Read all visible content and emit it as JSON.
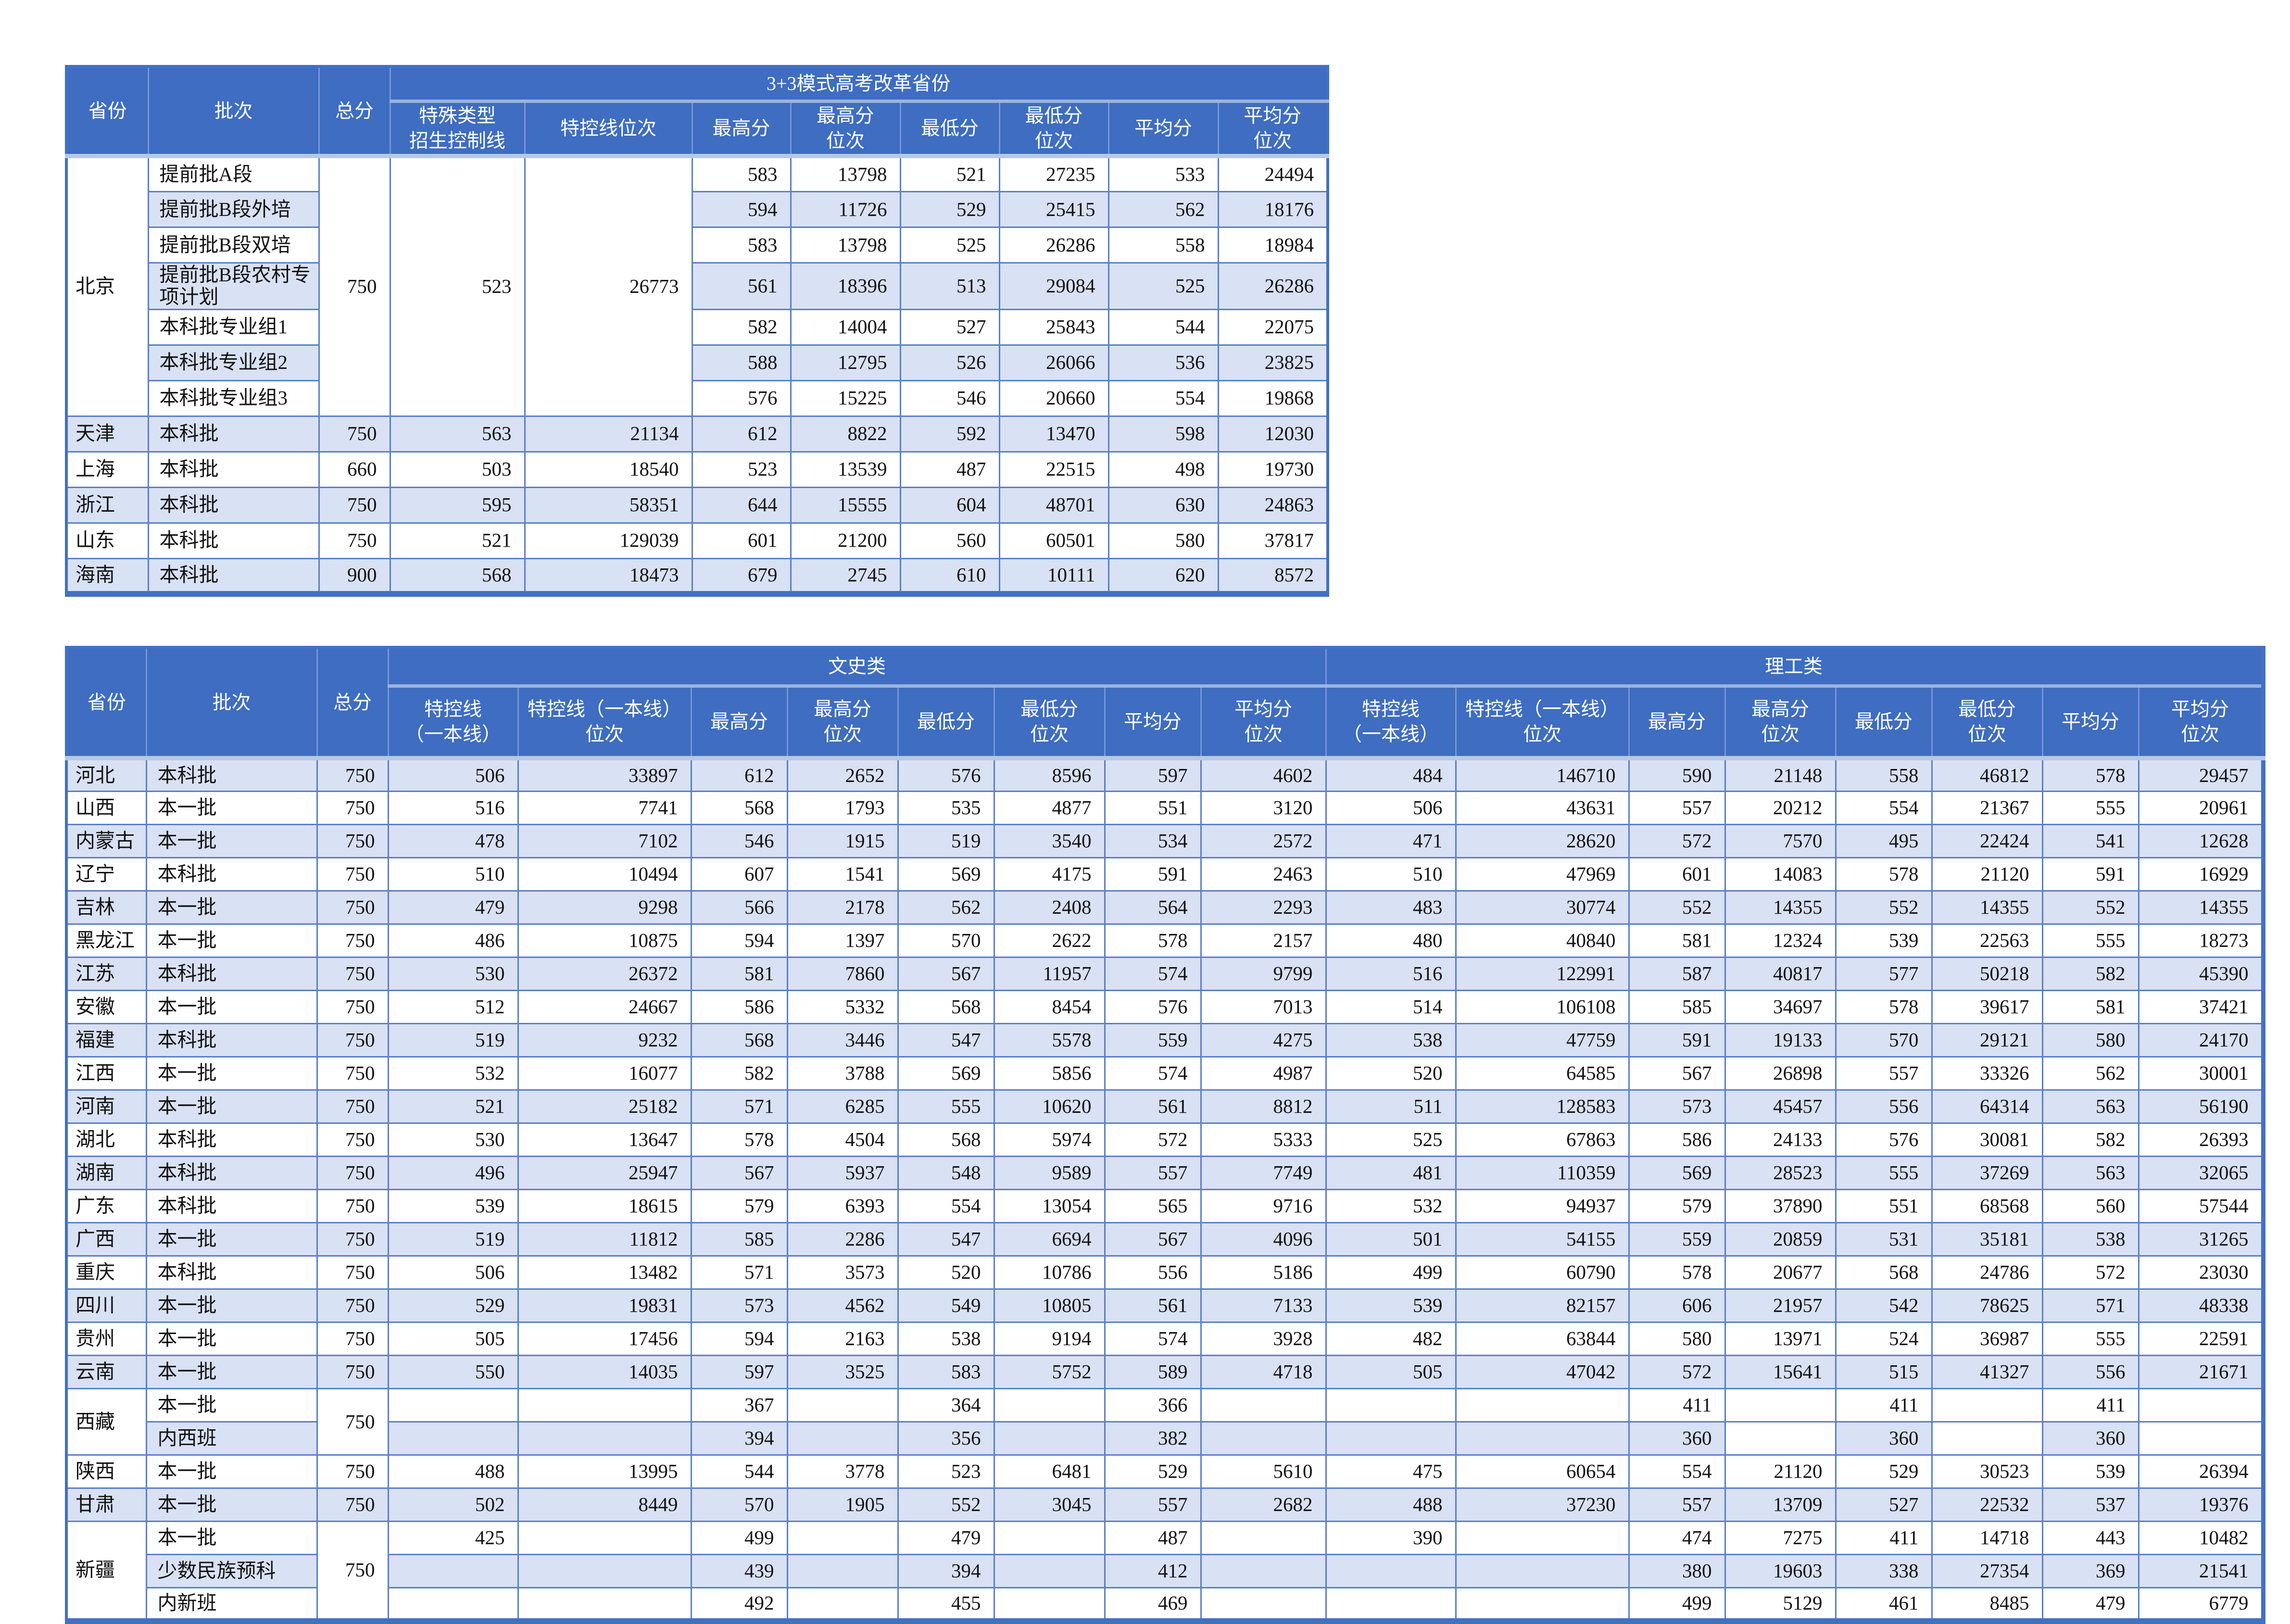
{
  "table1": {
    "group_title": "3+3模式高考改革省份",
    "col_headers": [
      "省份",
      "批次",
      "总分",
      "特殊类型\n招生控制线",
      "特控线位次",
      "最高分",
      "最高分\n位次",
      "最低分",
      "最低分\n位次",
      "平均分",
      "平均分\n位次"
    ],
    "beijing": {
      "province": "北京",
      "total": "750",
      "special_line": "523",
      "special_rank": "26773",
      "rows": [
        {
          "batch": "提前批A段",
          "values": [
            "583",
            "13798",
            "521",
            "27235",
            "533",
            "24494"
          ]
        },
        {
          "batch": "提前批B段外培",
          "values": [
            "594",
            "11726",
            "529",
            "25415",
            "562",
            "18176"
          ]
        },
        {
          "batch": "提前批B段双培",
          "values": [
            "583",
            "13798",
            "525",
            "26286",
            "558",
            "18984"
          ]
        },
        {
          "batch": "提前批B段农村专项计划",
          "values": [
            "561",
            "18396",
            "513",
            "29084",
            "525",
            "26286"
          ]
        },
        {
          "batch": "本科批专业组1",
          "values": [
            "582",
            "14004",
            "527",
            "25843",
            "544",
            "22075"
          ]
        },
        {
          "batch": "本科批专业组2",
          "values": [
            "588",
            "12795",
            "526",
            "26066",
            "536",
            "23825"
          ]
        },
        {
          "batch": "本科批专业组3",
          "values": [
            "576",
            "15225",
            "546",
            "20660",
            "554",
            "19868"
          ]
        }
      ]
    },
    "rows": [
      {
        "province": "天津",
        "batch": "本科批",
        "total": "750",
        "values": [
          "563",
          "21134",
          "612",
          "8822",
          "592",
          "13470",
          "598",
          "12030"
        ]
      },
      {
        "province": "上海",
        "batch": "本科批",
        "total": "660",
        "values": [
          "503",
          "18540",
          "523",
          "13539",
          "487",
          "22515",
          "498",
          "19730"
        ]
      },
      {
        "province": "浙江",
        "batch": "本科批",
        "total": "750",
        "values": [
          "595",
          "58351",
          "644",
          "15555",
          "604",
          "48701",
          "630",
          "24863"
        ]
      },
      {
        "province": "山东",
        "batch": "本科批",
        "total": "750",
        "values": [
          "521",
          "129039",
          "601",
          "21200",
          "560",
          "60501",
          "580",
          "37817"
        ]
      },
      {
        "province": "海南",
        "batch": "本科批",
        "total": "900",
        "values": [
          "568",
          "18473",
          "679",
          "2745",
          "610",
          "10111",
          "620",
          "8572"
        ]
      }
    ]
  },
  "table2": {
    "group_wen": "文史类",
    "group_li": "理工类",
    "left_headers": [
      "省份",
      "批次",
      "总分"
    ],
    "sub_headers": [
      "特控线\n（一本线）",
      "特控线（一本线）\n位次",
      "最高分",
      "最高分\n位次",
      "最低分",
      "最低分\n位次",
      "平均分",
      "平均分\n位次"
    ],
    "rows": [
      {
        "province": "河北",
        "batch": "本科批",
        "total": "750",
        "wen": [
          "506",
          "33897",
          "612",
          "2652",
          "576",
          "8596",
          "597",
          "4602"
        ],
        "li": [
          "484",
          "146710",
          "590",
          "21148",
          "558",
          "46812",
          "578",
          "29457"
        ]
      },
      {
        "province": "山西",
        "batch": "本一批",
        "total": "750",
        "wen": [
          "516",
          "7741",
          "568",
          "1793",
          "535",
          "4877",
          "551",
          "3120"
        ],
        "li": [
          "506",
          "43631",
          "557",
          "20212",
          "554",
          "21367",
          "555",
          "20961"
        ]
      },
      {
        "province": "内蒙古",
        "batch": "本一批",
        "total": "750",
        "wen": [
          "478",
          "7102",
          "546",
          "1915",
          "519",
          "3540",
          "534",
          "2572"
        ],
        "li": [
          "471",
          "28620",
          "572",
          "7570",
          "495",
          "22424",
          "541",
          "12628"
        ]
      },
      {
        "province": "辽宁",
        "batch": "本科批",
        "total": "750",
        "wen": [
          "510",
          "10494",
          "607",
          "1541",
          "569",
          "4175",
          "591",
          "2463"
        ],
        "li": [
          "510",
          "47969",
          "601",
          "14083",
          "578",
          "21120",
          "591",
          "16929"
        ]
      },
      {
        "province": "吉林",
        "batch": "本一批",
        "total": "750",
        "wen": [
          "479",
          "9298",
          "566",
          "2178",
          "562",
          "2408",
          "564",
          "2293"
        ],
        "li": [
          "483",
          "30774",
          "552",
          "14355",
          "552",
          "14355",
          "552",
          "14355"
        ]
      },
      {
        "province": "黑龙江",
        "batch": "本一批",
        "total": "750",
        "wen": [
          "486",
          "10875",
          "594",
          "1397",
          "570",
          "2622",
          "578",
          "2157"
        ],
        "li": [
          "480",
          "40840",
          "581",
          "12324",
          "539",
          "22563",
          "555",
          "18273"
        ]
      },
      {
        "province": "江苏",
        "batch": "本科批",
        "total": "750",
        "wen": [
          "530",
          "26372",
          "581",
          "7860",
          "567",
          "11957",
          "574",
          "9799"
        ],
        "li": [
          "516",
          "122991",
          "587",
          "40817",
          "577",
          "50218",
          "582",
          "45390"
        ]
      },
      {
        "province": "安徽",
        "batch": "本一批",
        "total": "750",
        "wen": [
          "512",
          "24667",
          "586",
          "5332",
          "568",
          "8454",
          "576",
          "7013"
        ],
        "li": [
          "514",
          "106108",
          "585",
          "34697",
          "578",
          "39617",
          "581",
          "37421"
        ]
      },
      {
        "province": "福建",
        "batch": "本科批",
        "total": "750",
        "wen": [
          "519",
          "9232",
          "568",
          "3446",
          "547",
          "5578",
          "559",
          "4275"
        ],
        "li": [
          "538",
          "47759",
          "591",
          "19133",
          "570",
          "29121",
          "580",
          "24170"
        ]
      },
      {
        "province": "江西",
        "batch": "本一批",
        "total": "750",
        "wen": [
          "532",
          "16077",
          "582",
          "3788",
          "569",
          "5856",
          "574",
          "4987"
        ],
        "li": [
          "520",
          "64585",
          "567",
          "26898",
          "557",
          "33326",
          "562",
          "30001"
        ]
      },
      {
        "province": "河南",
        "batch": "本一批",
        "total": "750",
        "wen": [
          "521",
          "25182",
          "571",
          "6285",
          "555",
          "10620",
          "561",
          "8812"
        ],
        "li": [
          "511",
          "128583",
          "573",
          "45457",
          "556",
          "64314",
          "563",
          "56190"
        ]
      },
      {
        "province": "湖北",
        "batch": "本科批",
        "total": "750",
        "wen": [
          "530",
          "13647",
          "578",
          "4504",
          "568",
          "5974",
          "572",
          "5333"
        ],
        "li": [
          "525",
          "67863",
          "586",
          "24133",
          "576",
          "30081",
          "582",
          "26393"
        ]
      },
      {
        "province": "湖南",
        "batch": "本科批",
        "total": "750",
        "wen": [
          "496",
          "25947",
          "567",
          "5937",
          "548",
          "9589",
          "557",
          "7749"
        ],
        "li": [
          "481",
          "110359",
          "569",
          "28523",
          "555",
          "37269",
          "563",
          "32065"
        ]
      },
      {
        "province": "广东",
        "batch": "本科批",
        "total": "750",
        "wen": [
          "539",
          "18615",
          "579",
          "6393",
          "554",
          "13054",
          "565",
          "9716"
        ],
        "li": [
          "532",
          "94937",
          "579",
          "37890",
          "551",
          "68568",
          "560",
          "57544"
        ]
      },
      {
        "province": "广西",
        "batch": "本一批",
        "total": "750",
        "wen": [
          "519",
          "11812",
          "585",
          "2286",
          "547",
          "6694",
          "567",
          "4096"
        ],
        "li": [
          "501",
          "54155",
          "559",
          "20859",
          "531",
          "35181",
          "538",
          "31265"
        ]
      },
      {
        "province": "重庆",
        "batch": "本科批",
        "total": "750",
        "wen": [
          "506",
          "13482",
          "571",
          "3573",
          "520",
          "10786",
          "556",
          "5186"
        ],
        "li": [
          "499",
          "60790",
          "578",
          "20677",
          "568",
          "24786",
          "572",
          "23030"
        ]
      },
      {
        "province": "四川",
        "batch": "本一批",
        "total": "750",
        "wen": [
          "529",
          "19831",
          "573",
          "4562",
          "549",
          "10805",
          "561",
          "7133"
        ],
        "li": [
          "539",
          "82157",
          "606",
          "21957",
          "542",
          "78625",
          "571",
          "48338"
        ]
      },
      {
        "province": "贵州",
        "batch": "本一批",
        "total": "750",
        "wen": [
          "505",
          "17456",
          "594",
          "2163",
          "538",
          "9194",
          "574",
          "3928"
        ],
        "li": [
          "482",
          "63844",
          "580",
          "13971",
          "524",
          "36987",
          "555",
          "22591"
        ]
      },
      {
        "province": "云南",
        "batch": "本一批",
        "total": "750",
        "wen": [
          "550",
          "14035",
          "597",
          "3525",
          "583",
          "5752",
          "589",
          "4718"
        ],
        "li": [
          "505",
          "47042",
          "572",
          "15641",
          "515",
          "41327",
          "556",
          "21671"
        ]
      },
      {
        "province": "西藏",
        "batch": "本一批",
        "total": "750",
        "span": 2,
        "wen": [
          "",
          "",
          "367",
          "",
          "364",
          "",
          "366",
          ""
        ],
        "li": [
          "",
          "",
          "411",
          "",
          "411",
          "",
          "411",
          ""
        ]
      },
      {
        "batch": "内西班",
        "wen": [
          "",
          "",
          "394",
          "",
          "356",
          "",
          "382",
          ""
        ],
        "li": [
          "",
          "",
          "360",
          "",
          "360",
          "",
          "360",
          ""
        ],
        "li_white": [
          3,
          5,
          7
        ]
      },
      {
        "province": "陕西",
        "batch": "本一批",
        "total": "750",
        "wen": [
          "488",
          "13995",
          "544",
          "3778",
          "523",
          "6481",
          "529",
          "5610"
        ],
        "li": [
          "475",
          "60654",
          "554",
          "21120",
          "529",
          "30523",
          "539",
          "26394"
        ]
      },
      {
        "province": "甘肃",
        "batch": "本一批",
        "total": "750",
        "wen": [
          "502",
          "8449",
          "570",
          "1905",
          "552",
          "3045",
          "557",
          "2682"
        ],
        "li": [
          "488",
          "37230",
          "557",
          "13709",
          "527",
          "22532",
          "537",
          "19376"
        ]
      },
      {
        "province": "新疆",
        "batch": "本一批",
        "total": "750",
        "span": 3,
        "wen": [
          "425",
          "",
          "499",
          "",
          "479",
          "",
          "487",
          ""
        ],
        "li": [
          "390",
          "",
          "474",
          "7275",
          "411",
          "14718",
          "443",
          "10482"
        ]
      },
      {
        "batch": "少数民族预科",
        "wen": [
          "",
          "",
          "439",
          "",
          "394",
          "",
          "412",
          ""
        ],
        "li": [
          "",
          "",
          "380",
          "19603",
          "338",
          "27354",
          "369",
          "21541"
        ]
      },
      {
        "batch": "内新班",
        "wen": [
          "",
          "",
          "492",
          "",
          "455",
          "",
          "469",
          ""
        ],
        "li": [
          "",
          "",
          "499",
          "5129",
          "461",
          "8485",
          "479",
          "6779"
        ]
      }
    ]
  }
}
